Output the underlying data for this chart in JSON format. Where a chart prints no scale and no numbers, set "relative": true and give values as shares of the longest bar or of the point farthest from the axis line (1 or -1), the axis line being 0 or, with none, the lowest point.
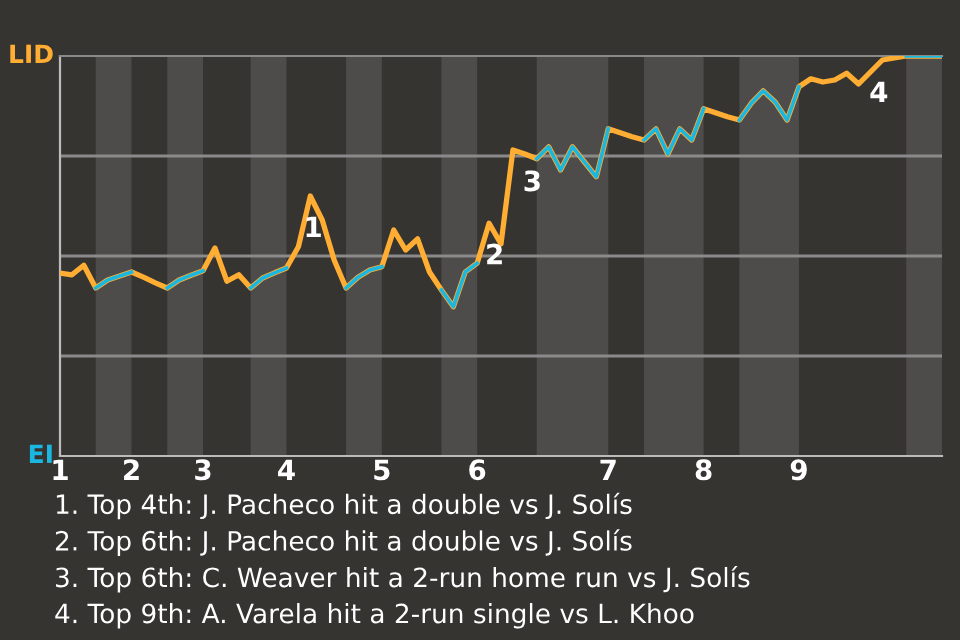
{
  "chart_data": {
    "type": "line",
    "relative": true,
    "grid": "y",
    "legend": false,
    "marker": "none",
    "line_style": "solid",
    "categories": [
      "1",
      null,
      null,
      null,
      null,
      null,
      "2",
      null,
      null,
      null,
      null,
      null,
      "3",
      null,
      null,
      null,
      null,
      null,
      null,
      "4",
      null,
      null,
      null,
      null,
      null,
      null,
      null,
      "5",
      null,
      null,
      null,
      null,
      null,
      null,
      null,
      "6",
      null,
      null,
      null,
      null,
      null,
      null,
      null,
      null,
      null,
      null,
      "7",
      null,
      null,
      null,
      null,
      null,
      null,
      null,
      "8",
      null,
      null,
      null,
      null,
      null,
      null,
      null,
      "9",
      null,
      null,
      null,
      null,
      null,
      null,
      null,
      null,
      null,
      null,
      null,
      null
    ],
    "series": [
      {
        "color": "#ffad33",
        "values": [
          0.457,
          0.453,
          0.477,
          0.42,
          0.44,
          0.45,
          0.46,
          0.447,
          0.433,
          0.42,
          0.44,
          0.452,
          0.463,
          0.52,
          0.437,
          0.453,
          0.42,
          0.445,
          0.458,
          0.47,
          0.523,
          0.65,
          0.59,
          0.49,
          0.42,
          0.447,
          0.465,
          0.473,
          0.565,
          0.515,
          0.543,
          0.46,
          0.415,
          0.373,
          0.46,
          0.482,
          0.582,
          0.53,
          0.765,
          0.755,
          0.743,
          0.773,
          0.715,
          0.773,
          0.735,
          0.698,
          0.818,
          0.808,
          0.798,
          0.79,
          0.818,
          0.755,
          0.818,
          0.79,
          0.868,
          0.858,
          0.848,
          0.84,
          0.882,
          0.913,
          0.885,
          0.84,
          0.923,
          0.943,
          0.935,
          0.94,
          0.957,
          0.93,
          0.96,
          0.99,
          0.995,
          1,
          1,
          1,
          1
        ],
        "colors": [
          "#ffad33",
          "#ffad33",
          "#ffad33",
          "#1ab8e0",
          "#1ab8e0",
          "#1ab8e0",
          "#ffad33",
          "#ffad33",
          "#ffad33",
          "#1ab8e0",
          "#1ab8e0",
          "#1ab8e0",
          "#ffad33",
          "#ffad33",
          "#ffad33",
          "#ffad33",
          "#1ab8e0",
          "#1ab8e0",
          "#1ab8e0",
          "#ffad33",
          "#ffad33",
          "#ffad33",
          "#ffad33",
          "#ffad33",
          "#1ab8e0",
          "#1ab8e0",
          "#1ab8e0",
          "#ffad33",
          "#ffad33",
          "#ffad33",
          "#ffad33",
          "#ffad33",
          "#1ab8e0",
          "#1ab8e0",
          "#1ab8e0",
          "#ffad33",
          "#ffad33",
          "#ffad33",
          "#ffad33",
          "#ffad33",
          "#1ab8e0",
          "#1ab8e0",
          "#1ab8e0",
          "#1ab8e0",
          "#1ab8e0",
          "#1ab8e0",
          "#ffad33",
          "#ffad33",
          "#ffad33",
          "#1ab8e0",
          "#1ab8e0",
          "#1ab8e0",
          "#1ab8e0",
          "#1ab8e0",
          "#ffad33",
          "#ffad33",
          "#ffad33",
          "#1ab8e0",
          "#1ab8e0",
          "#1ab8e0",
          "#1ab8e0",
          "#1ab8e0",
          "#ffad33",
          "#ffad33",
          "#ffad33",
          "#ffad33",
          "#ffad33",
          "#ffad33",
          "#ffad33",
          "#ffad33",
          "#ffad33",
          "#1ab8e0",
          "#1ab8e0",
          "#1ab8e0",
          "#1ab8e0"
        ]
      }
    ],
    "annotations": [
      "LID",
      "EI",
      {
        "text": "1",
        "y": 0.65
      },
      {
        "text": "2",
        "y": 0.582
      },
      {
        "text": "3",
        "y": 0.765
      },
      {
        "text": "4",
        "y": 0.96
      },
      "1. Top 4th: J. Pacheco hit a double vs J. Solís",
      "2. Top 6th: J. Pacheco hit a double vs J. Solís",
      "3. Top 6th: C. Weaver hit a 2-run home run vs J. Solís",
      "4. Top 9th: A. Varela hit a 2-run single vs L. Khoo"
    ]
  }
}
